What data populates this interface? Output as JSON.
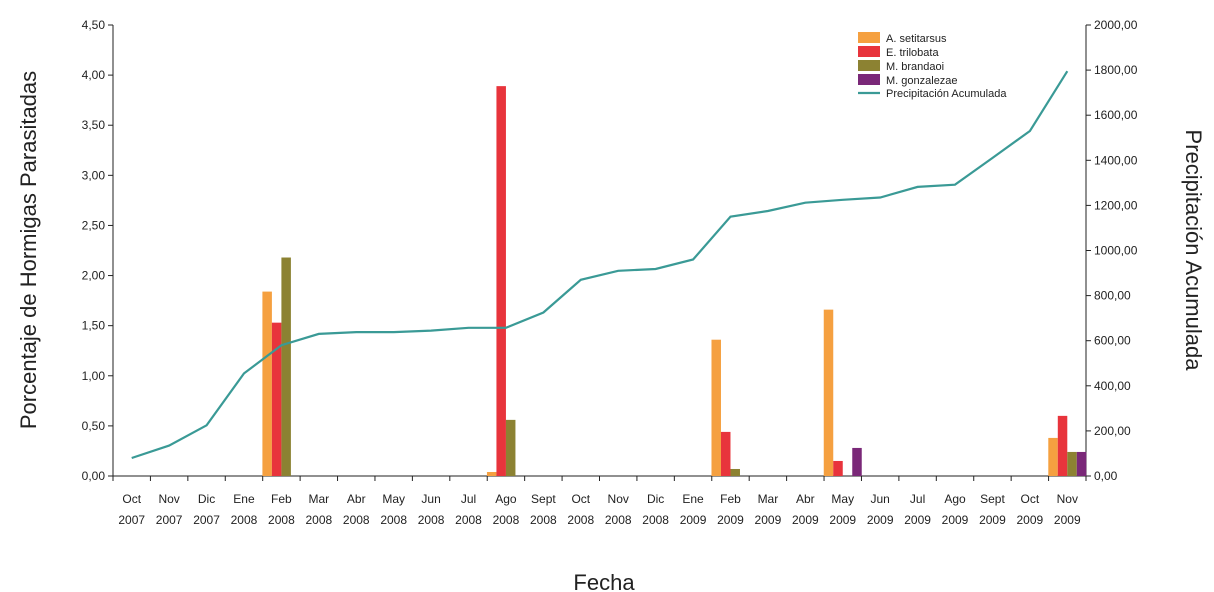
{
  "chart_data": {
    "type": "bar",
    "categories": [
      [
        "Oct",
        "2007"
      ],
      [
        "Nov",
        "2007"
      ],
      [
        "Dic",
        "2007"
      ],
      [
        "Ene",
        "2008"
      ],
      [
        "Feb",
        "2008"
      ],
      [
        "Mar",
        "2008"
      ],
      [
        "Abr",
        "2008"
      ],
      [
        "May",
        "2008"
      ],
      [
        "Jun",
        "2008"
      ],
      [
        "Jul",
        "2008"
      ],
      [
        "Ago",
        "2008"
      ],
      [
        "Sept",
        "2008"
      ],
      [
        "Oct",
        "2008"
      ],
      [
        "Nov",
        "2008"
      ],
      [
        "Dic",
        "2008"
      ],
      [
        "Ene",
        "2009"
      ],
      [
        "Feb",
        "2009"
      ],
      [
        "Mar",
        "2009"
      ],
      [
        "Abr",
        "2009"
      ],
      [
        "May",
        "2009"
      ],
      [
        "Jun",
        "2009"
      ],
      [
        "Jul",
        "2009"
      ],
      [
        "Ago",
        "2009"
      ],
      [
        "Sept",
        "2009"
      ],
      [
        "Oct",
        "2009"
      ],
      [
        "Nov",
        "2009"
      ]
    ],
    "xlabel": "Fecha",
    "ylabel": "Porcentaje de Hormigas Parasitadas",
    "y2label": "Precipitación Acumulada",
    "ylim": [
      0,
      4.5
    ],
    "y2lim": [
      0,
      2000
    ],
    "yticks": [
      "0,00",
      "0,50",
      "1,00",
      "1,50",
      "2,00",
      "2,50",
      "3,00",
      "3,50",
      "4,00",
      "4,50"
    ],
    "y2ticks": [
      "0,00",
      "200,00",
      "400,00",
      "600,00",
      "800,00",
      "1000,00",
      "1200,00",
      "1400,00",
      "1600,00",
      "1800,00",
      "2000,00"
    ],
    "legend_position": "top-right",
    "series": [
      {
        "name": "A. setitarsus",
        "color": "#f5a040",
        "values": [
          0,
          0,
          0,
          0,
          1.84,
          0,
          0,
          0,
          0,
          0,
          0.04,
          0,
          0,
          0,
          0,
          0,
          1.36,
          0,
          0,
          1.66,
          0,
          0,
          0,
          0,
          0,
          0.38
        ]
      },
      {
        "name": "E. trilobata",
        "color": "#e8343c",
        "values": [
          0,
          0,
          0,
          0,
          1.53,
          0,
          0,
          0,
          0,
          0,
          3.89,
          0,
          0,
          0,
          0,
          0,
          0.44,
          0,
          0,
          0.15,
          0,
          0,
          0,
          0,
          0,
          0.6
        ]
      },
      {
        "name": "M. brandaoi",
        "color": "#8c8232",
        "values": [
          0,
          0,
          0,
          0,
          2.18,
          0,
          0,
          0,
          0,
          0,
          0.56,
          0,
          0,
          0,
          0,
          0,
          0.07,
          0,
          0,
          0,
          0,
          0,
          0,
          0,
          0,
          0.24
        ]
      },
      {
        "name": "M. gonzalezae",
        "color": "#7a2878",
        "values": [
          0,
          0,
          0,
          0,
          0,
          0,
          0,
          0,
          0,
          0,
          0,
          0,
          0,
          0,
          0,
          0,
          0,
          0,
          0,
          0.28,
          0,
          0,
          0,
          0,
          0,
          0.24
        ]
      }
    ],
    "line_series": {
      "name": "Precipitación Acumulada",
      "color": "#3a9a96",
      "axis": "right",
      "values": [
        80,
        135,
        225,
        455,
        580,
        630,
        638,
        638,
        645,
        657,
        657,
        725,
        870,
        910,
        918,
        960,
        1150,
        1175,
        1212,
        1225,
        1235,
        1282,
        1292,
        1410,
        1530,
        1795
      ]
    }
  }
}
